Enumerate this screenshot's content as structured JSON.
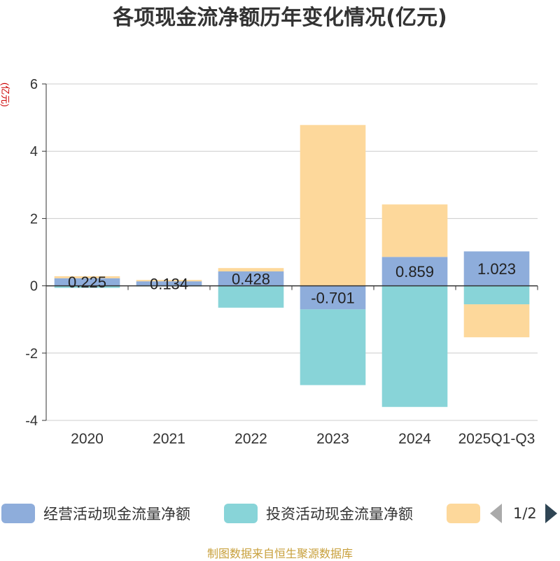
{
  "chart_data": {
    "type": "bar",
    "stacked": true,
    "title": "各项现金流净额历年变化情况(亿元)",
    "ylabel": "(亿元)",
    "categories": [
      "2020",
      "2021",
      "2022",
      "2023",
      "2024",
      "2025Q1-Q3"
    ],
    "ylim": [
      -4,
      6
    ],
    "yticks": [
      -4,
      -2,
      0,
      2,
      4,
      6
    ],
    "series": [
      {
        "name": "经营活动现金流量净额",
        "color": "#8eaddb",
        "values": [
          0.225,
          0.134,
          0.428,
          -0.701,
          0.859,
          1.023
        ],
        "show_labels": true
      },
      {
        "name": "投资活动现金流量净额",
        "color": "#88d4d8",
        "values": [
          -0.06,
          -0.02,
          -0.65,
          -2.25,
          -3.6,
          -0.55
        ],
        "show_labels": false
      },
      {
        "name": "",
        "color": "#fdd89b",
        "values": [
          0.06,
          0.04,
          0.1,
          4.78,
          1.56,
          -0.98
        ],
        "show_labels": false
      }
    ]
  },
  "legend": {
    "items": [
      {
        "label": "经营活动现金流量净额",
        "color": "#8eaddb"
      },
      {
        "label": "投资活动现金流量净额",
        "color": "#88d4d8"
      },
      {
        "label": "",
        "color": "#fdd89b"
      }
    ],
    "page_indicator": "1/2"
  },
  "source": "制图数据来自恒生聚源数据库"
}
